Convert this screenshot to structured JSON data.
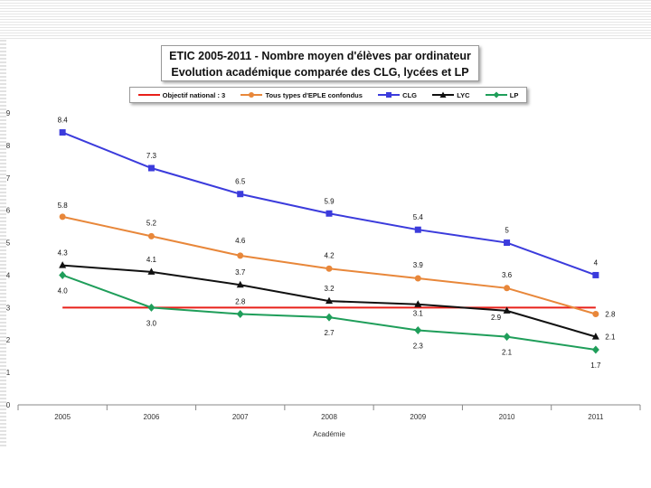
{
  "chart_data": {
    "type": "line",
    "title": [
      "ETIC 2005-2011 - Nombre moyen d'élèves par ordinateur",
      "Evolution académique comparée des CLG, lycées et LP"
    ],
    "xlabel": "Académie",
    "ylabel": "",
    "categories": [
      "2005",
      "2006",
      "2007",
      "2008",
      "2009",
      "2010",
      "2011"
    ],
    "ylim": [
      0,
      9
    ],
    "yticks": [
      "0",
      "1",
      "2",
      "3",
      "4",
      "5",
      "6",
      "7",
      "8",
      "9"
    ],
    "legend_position": "top",
    "series": [
      {
        "name": "Objectif national : 3",
        "color": "#e8201a",
        "marker": "none",
        "values": [
          3,
          3,
          3,
          3,
          3,
          3,
          3
        ],
        "labels": []
      },
      {
        "name": "Tous types d'EPLE confondus",
        "color": "#e8873a",
        "marker": "circle",
        "values": [
          5.8,
          5.2,
          4.6,
          4.2,
          3.9,
          3.6,
          2.8
        ],
        "labels": [
          "5.8",
          "5.2",
          "4.6",
          "4.2",
          "3.9",
          "3.6",
          "2.8"
        ]
      },
      {
        "name": "CLG",
        "color": "#3b3bdc",
        "marker": "square",
        "values": [
          8.4,
          7.3,
          6.5,
          5.9,
          5.4,
          5,
          4
        ],
        "labels": [
          "8.4",
          "7.3",
          "6.5",
          "5.9",
          "5.4",
          "5",
          "4"
        ]
      },
      {
        "name": "LYC",
        "color": "#111111",
        "marker": "triangle",
        "values": [
          4.3,
          4.1,
          3.7,
          3.2,
          3.1,
          2.9,
          2.1
        ],
        "labels": [
          "4.3",
          "4.1",
          "3.7",
          "3.2",
          "3.1",
          "2.9",
          "2.1"
        ]
      },
      {
        "name": "LP",
        "color": "#1f9e5a",
        "marker": "diamond",
        "values": [
          4.0,
          3.0,
          2.8,
          2.7,
          2.3,
          2.1,
          1.7
        ],
        "labels": [
          "4.0",
          "3.0",
          "2.8",
          "2.7",
          "2.3",
          "2.1",
          "1.7"
        ]
      }
    ]
  }
}
